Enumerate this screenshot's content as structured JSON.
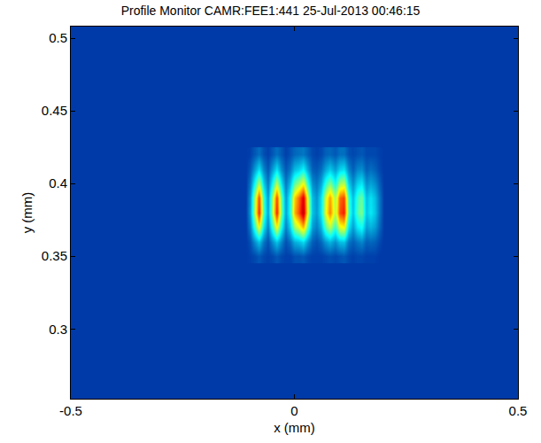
{
  "chart_data": {
    "type": "heatmap",
    "title": "Profile Monitor CAMR:FEE1:441 25-Jul-2013 00:46:15",
    "x_label": "x (mm)",
    "y_label": "y (mm)",
    "color": "Jet",
    "grid": false,
    "xlim": [
      -0.5,
      0.5
    ],
    "xticks": [
      -0.5,
      0,
      0.5
    ],
    "ylim": [
      0.252,
      0.508
    ],
    "yticks": [
      0.3,
      0.35,
      0.4,
      0.45,
      0.5
    ],
    "zlim": [
      0,
      100
    ],
    "x": [
      -0.11,
      -0.1,
      -0.09,
      -0.08,
      -0.07,
      -0.06,
      -0.05,
      -0.04,
      -0.03,
      -0.02,
      -0.01,
      0,
      0.01,
      0.02,
      0.03,
      0.04,
      0.05,
      0.06,
      0.07,
      0.08,
      0.09,
      0.1,
      0.11,
      0.12,
      0.13,
      0.14,
      0.15,
      0.16,
      0.17,
      0.18,
      0.19,
      0.2
    ],
    "y": [
      0.35,
      0.36,
      0.37,
      0.38,
      0.39,
      0.4,
      0.41,
      0.42
    ],
    "z": [
      [
        12,
        13,
        14,
        16,
        14,
        13,
        14,
        16,
        14,
        13,
        13,
        15,
        15,
        16,
        14,
        13,
        13,
        13,
        14,
        15,
        14,
        15,
        16,
        14,
        13,
        14,
        14,
        13,
        13,
        13,
        12,
        12
      ],
      [
        12,
        15,
        23,
        30,
        20,
        15,
        23,
        30,
        22,
        15,
        19,
        27,
        29,
        33,
        24,
        17,
        15,
        18,
        24,
        28,
        23,
        29,
        30,
        20,
        17,
        20,
        22,
        17,
        18,
        17,
        14,
        12
      ],
      [
        12,
        21,
        42,
        63,
        35,
        21,
        42,
        63,
        39,
        21,
        32,
        53,
        60,
        70,
        46,
        25,
        21,
        28,
        46,
        56,
        42,
        60,
        63,
        35,
        25,
        35,
        39,
        25,
        28,
        25,
        18,
        12
      ],
      [
        12,
        25,
        55,
        85,
        45,
        25,
        55,
        85,
        50,
        25,
        40,
        70,
        80,
        95,
        60,
        30,
        25,
        35,
        60,
        75,
        55,
        80,
        85,
        45,
        30,
        45,
        50,
        30,
        35,
        30,
        20,
        12
      ],
      [
        12,
        24,
        53,
        81,
        43,
        24,
        53,
        81,
        48,
        24,
        39,
        67,
        77,
        91,
        58,
        29,
        24,
        34,
        58,
        72,
        53,
        77,
        81,
        43,
        29,
        43,
        48,
        29,
        34,
        29,
        20,
        12
      ],
      [
        12,
        20,
        38,
        56,
        32,
        20,
        38,
        56,
        35,
        20,
        29,
        47,
        53,
        62,
        41,
        23,
        20,
        26,
        41,
        50,
        38,
        53,
        56,
        32,
        23,
        32,
        35,
        23,
        26,
        23,
        17,
        12
      ],
      [
        12,
        16,
        25,
        34,
        22,
        16,
        25,
        34,
        23,
        16,
        20,
        29,
        32,
        37,
        26,
        17,
        16,
        19,
        26,
        31,
        25,
        32,
        34,
        22,
        17,
        22,
        23,
        17,
        19,
        17,
        14,
        12
      ],
      [
        12,
        13,
        16,
        19,
        15,
        13,
        16,
        19,
        16,
        13,
        15,
        18,
        19,
        20,
        17,
        14,
        13,
        14,
        17,
        18,
        16,
        19,
        19,
        15,
        14,
        15,
        16,
        14,
        14,
        14,
        13,
        12
      ]
    ]
  }
}
